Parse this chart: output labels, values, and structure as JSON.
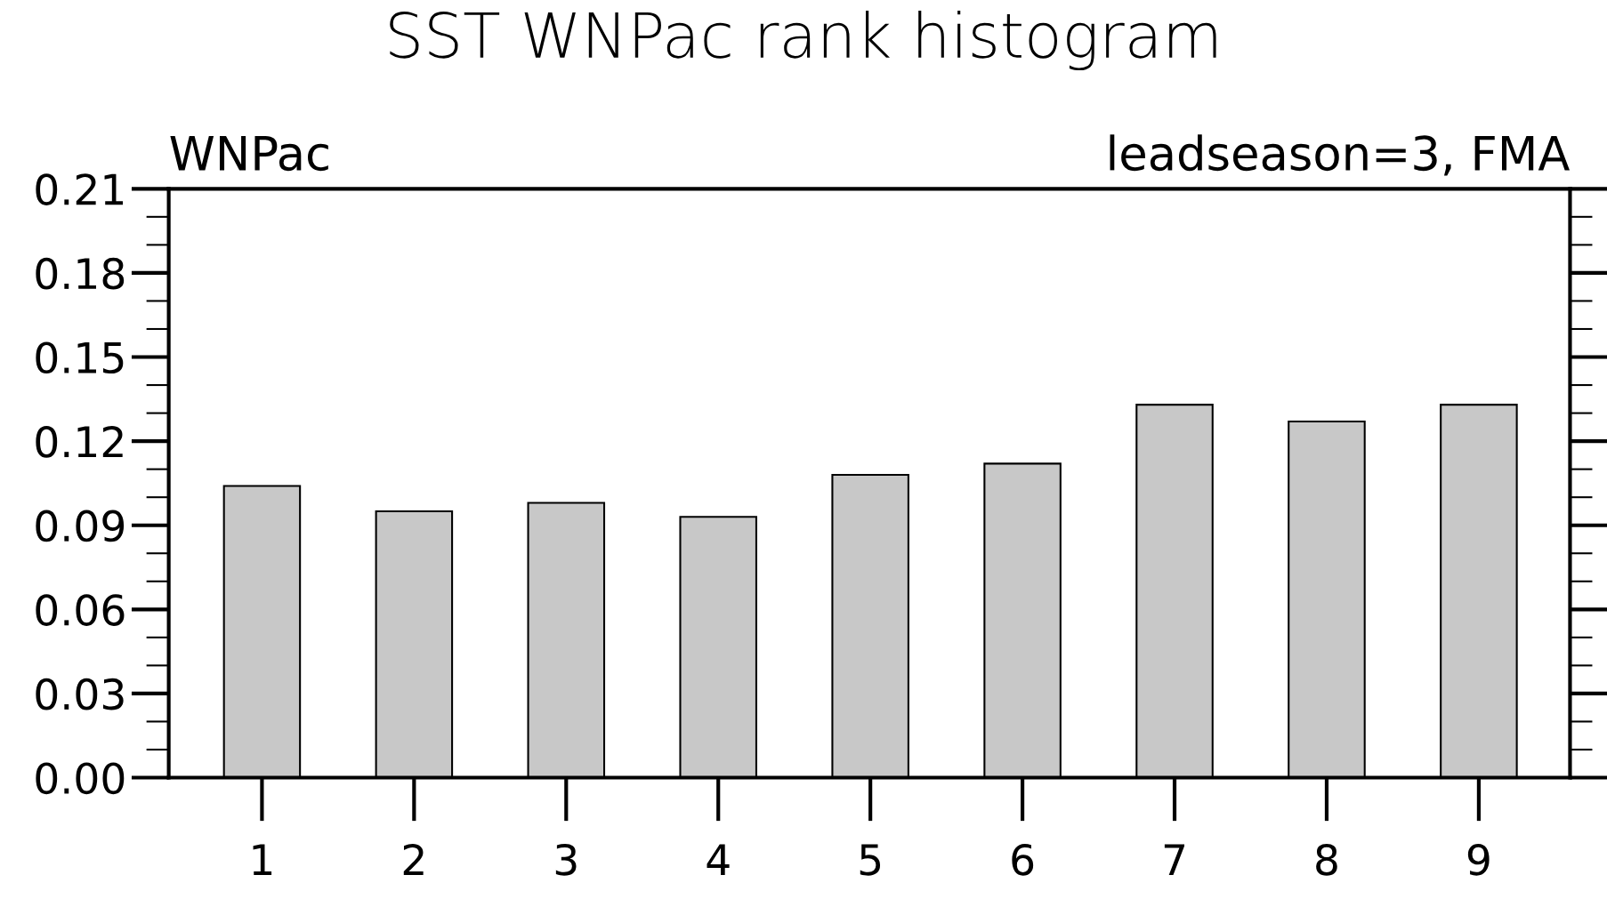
{
  "chart_data": {
    "type": "bar",
    "title": "SST WNPac rank histogram",
    "annotations": [
      "WNPac",
      "leadseason=3, FMA"
    ],
    "categories": [
      "1",
      "2",
      "3",
      "4",
      "5",
      "6",
      "7",
      "8",
      "9"
    ],
    "values": [
      0.104,
      0.095,
      0.098,
      0.093,
      0.108,
      0.112,
      0.133,
      0.127,
      0.133
    ],
    "color": "#c8c8c8",
    "ylim": [
      0,
      0.21
    ],
    "yticks": [
      {
        "value": 0,
        "label": "0.00"
      },
      {
        "value": 0.03,
        "label": "0.03"
      },
      {
        "value": 0.06,
        "label": "0.06"
      },
      {
        "value": 0.09,
        "label": "0.09"
      },
      {
        "value": 0.12,
        "label": "0.12"
      },
      {
        "value": 0.15,
        "label": "0.15"
      },
      {
        "value": 0.18,
        "label": "0.18"
      },
      {
        "value": 0.21,
        "label": "0.21"
      }
    ],
    "grid": false
  }
}
